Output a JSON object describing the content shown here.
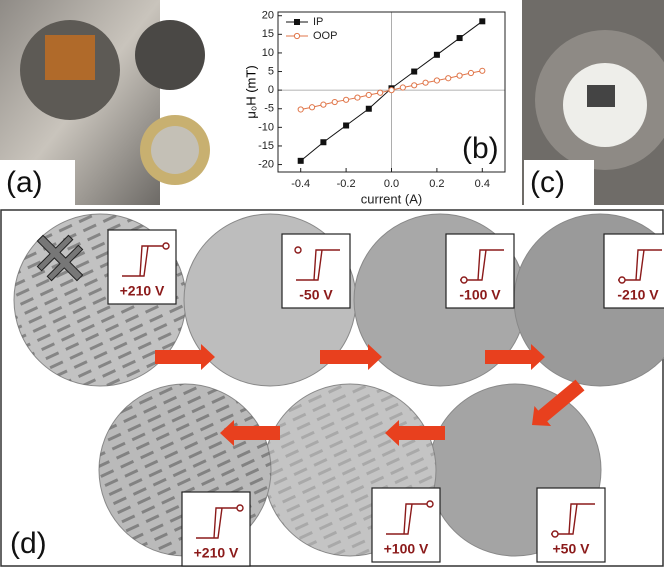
{
  "panels": {
    "a": "(a)",
    "b": "(b)",
    "c": "(c)",
    "d": "(d)"
  },
  "chart_data": {
    "type": "line",
    "x_label": "current (A)",
    "y_label": "μ₀H (mT)",
    "xlim": [
      -0.5,
      0.5
    ],
    "ylim": [
      -22,
      21
    ],
    "xticks": [
      -0.4,
      -0.2,
      {
        "value": 0,
        "label": "0.0"
      },
      0.2,
      0.4
    ],
    "yticks": [
      -20,
      -15,
      -10,
      -5,
      0,
      5,
      10,
      15,
      20
    ],
    "legend": "top-left",
    "series": [
      {
        "name": "IP",
        "color": "#111111",
        "marker": "square",
        "x": [
          -0.4,
          -0.3,
          -0.2,
          -0.1,
          0,
          0.1,
          0.2,
          0.3,
          0.4
        ],
        "values": [
          -19,
          -14,
          -9.5,
          -5,
          0.5,
          5,
          9.5,
          14,
          18.5
        ]
      },
      {
        "name": "OOP",
        "color": "#e0764a",
        "marker": "circle",
        "x": [
          -0.4,
          -0.35,
          -0.3,
          -0.25,
          -0.2,
          -0.15,
          -0.1,
          -0.05,
          0,
          0.05,
          0.1,
          0.15,
          0.2,
          0.25,
          0.3,
          0.35,
          0.4
        ],
        "values": [
          -5.2,
          -4.6,
          -3.9,
          -3.2,
          -2.6,
          -2,
          -1.3,
          -0.7,
          0,
          0.7,
          1.3,
          2,
          2.6,
          3.2,
          3.9,
          4.6,
          5.2
        ]
      }
    ]
  },
  "sequence": [
    "+210 V",
    "-50 V",
    "-100 V",
    "-210 V",
    "+50 V",
    "+100 V",
    "+210 V"
  ]
}
